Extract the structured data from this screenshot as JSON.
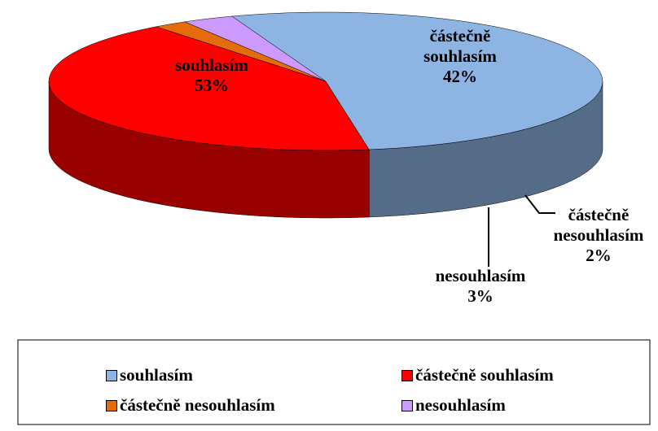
{
  "chart_data": {
    "type": "pie3d",
    "categories": [
      "souhlasím",
      "částečně souhlasím",
      "částečně nesouhlasím",
      "nesouhlasím"
    ],
    "values": [
      53,
      42,
      2,
      3
    ],
    "value_labels": [
      "53%",
      "42%",
      "2%",
      "3%"
    ],
    "colors": [
      "#8db4e2",
      "#ff0000",
      "#e46c0a",
      "#cc99ff"
    ],
    "legend": "bottom"
  }
}
